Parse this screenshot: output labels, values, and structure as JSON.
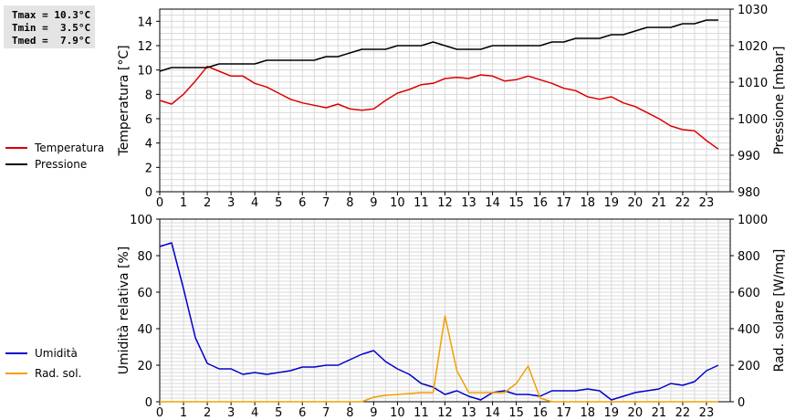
{
  "stats": {
    "tmax": "Tmax = 10.3°C",
    "tmin": "Tmin =  3.5°C",
    "tmed": "Tmed =  7.9°C"
  },
  "chart_data": [
    {
      "type": "line",
      "x": [
        0,
        0.5,
        1,
        1.5,
        2,
        2.5,
        3,
        3.5,
        4,
        4.5,
        5,
        5.5,
        6,
        6.5,
        7,
        7.5,
        8,
        8.5,
        9,
        9.5,
        10,
        10.5,
        11,
        11.5,
        12,
        12.5,
        13,
        13.5,
        14,
        14.5,
        15,
        15.5,
        16,
        16.5,
        17,
        17.5,
        18,
        18.5,
        19,
        19.5,
        20,
        20.5,
        21,
        21.5,
        22,
        22.5,
        23,
        23.5
      ],
      "xlim": [
        0,
        24
      ],
      "xticks": [
        0,
        1,
        2,
        3,
        4,
        5,
        6,
        7,
        8,
        9,
        10,
        11,
        12,
        13,
        14,
        15,
        16,
        17,
        18,
        19,
        20,
        21,
        22,
        23
      ],
      "ylabel": "Temperatura [°C]",
      "ylim": [
        0,
        15
      ],
      "yticks": [
        0,
        2,
        4,
        6,
        8,
        10,
        12,
        14
      ],
      "y2label": "Pressione [mbar]",
      "y2lim": [
        980,
        1030
      ],
      "y2ticks": [
        980,
        990,
        1000,
        1010,
        1020,
        1030
      ],
      "grid": true,
      "legend_position": "left",
      "series": [
        {
          "name": "Temperatura",
          "axis": "left",
          "color": "#dd0000",
          "values": [
            7.5,
            7.2,
            8,
            9.1,
            10.3,
            9.9,
            9.5,
            9.5,
            8.9,
            8.6,
            8.1,
            7.6,
            7.3,
            7.1,
            6.9,
            7.2,
            6.8,
            6.7,
            6.8,
            7.5,
            8.1,
            8.4,
            8.8,
            8.9,
            9.3,
            9.4,
            9.3,
            9.6,
            9.5,
            9.1,
            9.2,
            9.5,
            9.2,
            8.9,
            8.5,
            8.3,
            7.8,
            7.6,
            7.8,
            7.3,
            7.0,
            6.5,
            6.0,
            5.4,
            5.1,
            5.0,
            4.2,
            3.5
          ]
        },
        {
          "name": "Pressione",
          "axis": "right",
          "color": "#000000",
          "values": [
            1013,
            1014,
            1014,
            1014,
            1014,
            1015,
            1015,
            1015,
            1015,
            1016,
            1016,
            1016,
            1016,
            1016,
            1017,
            1017,
            1018,
            1019,
            1019,
            1019,
            1020,
            1020,
            1020,
            1021,
            1020,
            1019,
            1019,
            1019,
            1020,
            1020,
            1020,
            1020,
            1020,
            1021,
            1021,
            1022,
            1022,
            1022,
            1023,
            1023,
            1024,
            1025,
            1025,
            1025,
            1026,
            1026,
            1027,
            1027
          ]
        }
      ]
    },
    {
      "type": "line",
      "x": [
        0,
        0.5,
        1,
        1.5,
        2,
        2.5,
        3,
        3.5,
        4,
        4.5,
        5,
        5.5,
        6,
        6.5,
        7,
        7.5,
        8,
        8.5,
        9,
        9.5,
        10,
        10.5,
        11,
        11.5,
        12,
        12.5,
        13,
        13.5,
        14,
        14.5,
        15,
        15.5,
        16,
        16.5,
        17,
        17.5,
        18,
        18.5,
        19,
        19.5,
        20,
        20.5,
        21,
        21.5,
        22,
        22.5,
        23,
        23.5
      ],
      "xlim": [
        0,
        24
      ],
      "xticks": [
        0,
        1,
        2,
        3,
        4,
        5,
        6,
        7,
        8,
        9,
        10,
        11,
        12,
        13,
        14,
        15,
        16,
        17,
        18,
        19,
        20,
        21,
        22,
        23
      ],
      "ylabel": "Umidità relativa [%]",
      "ylim": [
        0,
        100
      ],
      "yticks": [
        0,
        20,
        40,
        60,
        80,
        100
      ],
      "y2label": "Rad. solare [W/mq]",
      "y2lim": [
        0,
        1000
      ],
      "y2ticks": [
        0,
        200,
        400,
        600,
        800,
        1000
      ],
      "grid": true,
      "legend_position": "left",
      "series": [
        {
          "name": "Umidità",
          "axis": "left",
          "color": "#0000cc",
          "values": [
            85,
            87,
            62,
            35,
            21,
            18,
            18,
            15,
            16,
            15,
            16,
            17,
            19,
            19,
            20,
            20,
            23,
            26,
            28,
            22,
            18,
            15,
            10,
            8,
            4,
            6,
            3,
            1,
            5,
            6,
            4,
            4,
            3,
            6,
            6,
            6,
            7,
            6,
            1,
            3,
            5,
            6,
            7,
            10,
            9,
            11,
            17,
            20
          ]
        },
        {
          "name": "Rad. sol.",
          "axis": "right",
          "color": "#f0a000",
          "values": [
            0,
            0,
            0,
            0,
            0,
            0,
            0,
            0,
            0,
            0,
            0,
            0,
            0,
            0,
            0,
            0,
            0,
            0,
            25,
            35,
            40,
            45,
            50,
            50,
            470,
            170,
            50,
            50,
            50,
            50,
            100,
            195,
            20,
            0,
            0,
            0,
            0,
            0,
            0,
            0,
            0,
            0,
            0,
            0,
            0,
            0,
            0,
            0
          ]
        }
      ]
    }
  ]
}
